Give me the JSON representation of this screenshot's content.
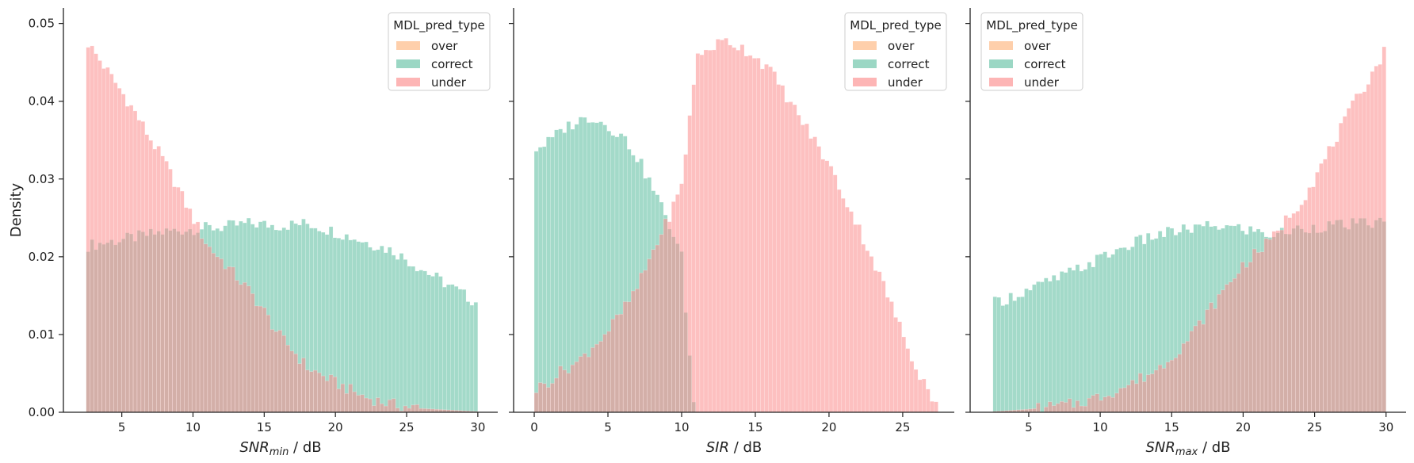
{
  "chart_data": [
    {
      "type": "histogram",
      "xlabel_base": "SNR",
      "xlabel_sub": "min",
      "xlabel_unit": " / dB",
      "ylabel": "Density",
      "xlim": [
        0.9,
        31.4
      ],
      "ylim": [
        0,
        0.052
      ],
      "xticks": [
        5,
        10,
        15,
        20,
        25,
        30
      ],
      "yticks": [
        0.0,
        0.01,
        0.02,
        0.03,
        0.04,
        0.05
      ],
      "ytick_labels": [
        "0.00",
        "0.01",
        "0.02",
        "0.03",
        "0.04",
        "0.05"
      ],
      "bin_range": [
        2.5,
        30
      ],
      "bins": 100,
      "legend_title": "MDL_pred_type",
      "legend_placement": "top-right",
      "legend_entries": [
        "over",
        "correct",
        "under"
      ],
      "series": [
        {
          "name": "correct",
          "color": "#66c2a5",
          "opacity": 0.6,
          "profile": [
            [
              2.5,
              0.0214
            ],
            [
              5,
              0.0222
            ],
            [
              8,
              0.0232
            ],
            [
              10,
              0.0236
            ],
            [
              12,
              0.0238
            ],
            [
              14,
              0.0243
            ],
            [
              16,
              0.024
            ],
            [
              18,
              0.0243
            ],
            [
              20,
              0.0232
            ],
            [
              22,
              0.022
            ],
            [
              24,
              0.0208
            ],
            [
              26,
              0.0185
            ],
            [
              28,
              0.0163
            ],
            [
              30,
              0.014
            ]
          ]
        },
        {
          "name": "under",
          "color": "#fc8d8d",
          "opacity": 0.55,
          "profile": [
            [
              2.5,
              0.0478
            ],
            [
              3.5,
              0.0452
            ],
            [
              5,
              0.0412
            ],
            [
              6,
              0.0384
            ],
            [
              7,
              0.0352
            ],
            [
              8,
              0.0322
            ],
            [
              9,
              0.0286
            ],
            [
              10,
              0.025
            ],
            [
              11,
              0.0215
            ],
            [
              12,
              0.0196
            ],
            [
              14,
              0.0155
            ],
            [
              15,
              0.013
            ],
            [
              16,
              0.01
            ],
            [
              17,
              0.008
            ],
            [
              18,
              0.0058
            ],
            [
              20,
              0.0038
            ],
            [
              22,
              0.002
            ],
            [
              24,
              0.001
            ],
            [
              26,
              0.0005
            ],
            [
              28,
              0.0003
            ],
            [
              30,
              0.0001
            ]
          ]
        }
      ]
    },
    {
      "type": "histogram",
      "xlabel_base": "SIR",
      "xlabel_sub": "",
      "xlabel_unit": " / dB",
      "ylabel": "",
      "xlim": [
        -1.4,
        28.5
      ],
      "ylim": [
        0,
        0.052
      ],
      "xticks": [
        0,
        5,
        10,
        15,
        20,
        25
      ],
      "yticks": [
        0.0,
        0.01,
        0.02,
        0.03,
        0.04,
        0.05
      ],
      "ytick_labels": [],
      "bin_range": [
        0,
        27.4
      ],
      "bins": 100,
      "legend_title": "MDL_pred_type",
      "legend_placement": "top-right",
      "legend_entries": [
        "over",
        "correct",
        "under"
      ],
      "series": [
        {
          "name": "correct",
          "color": "#66c2a5",
          "opacity": 0.6,
          "profile": [
            [
              0,
              0.0338
            ],
            [
              1,
              0.0348
            ],
            [
              2,
              0.0365
            ],
            [
              3,
              0.0375
            ],
            [
              4,
              0.038
            ],
            [
              5,
              0.0368
            ],
            [
              6,
              0.0355
            ],
            [
              7,
              0.0328
            ],
            [
              8,
              0.029
            ],
            [
              9,
              0.025
            ],
            [
              10,
              0.02
            ],
            [
              10.5,
              0.008
            ],
            [
              10.9,
              0.0
            ],
            [
              27.4,
              0.0
            ]
          ]
        },
        {
          "name": "under",
          "color": "#fc8d8d",
          "opacity": 0.55,
          "profile": [
            [
              0,
              0.0028
            ],
            [
              1,
              0.004
            ],
            [
              2,
              0.0055
            ],
            [
              3,
              0.0065
            ],
            [
              4,
              0.0085
            ],
            [
              5,
              0.0105
            ],
            [
              6,
              0.013
            ],
            [
              7,
              0.016
            ],
            [
              8,
              0.0205
            ],
            [
              9,
              0.0245
            ],
            [
              10,
              0.029
            ],
            [
              11,
              0.0455
            ],
            [
              12,
              0.047
            ],
            [
              13,
              0.0478
            ],
            [
              14,
              0.047
            ],
            [
              15,
              0.0458
            ],
            [
              16,
              0.044
            ],
            [
              17,
              0.041
            ],
            [
              18,
              0.038
            ],
            [
              19,
              0.035
            ],
            [
              20,
              0.0318
            ],
            [
              21,
              0.0278
            ],
            [
              22,
              0.0238
            ],
            [
              23,
              0.0195
            ],
            [
              24,
              0.015
            ],
            [
              25,
              0.01
            ],
            [
              26,
              0.0055
            ],
            [
              27,
              0.002
            ],
            [
              27.4,
              0.0008
            ]
          ]
        }
      ]
    },
    {
      "type": "histogram",
      "xlabel_base": "SNR",
      "xlabel_sub": "max",
      "xlabel_unit": " / dB",
      "ylabel": "",
      "xlim": [
        0.9,
        31.4
      ],
      "ylim": [
        0,
        0.052
      ],
      "xticks": [
        5,
        10,
        15,
        20,
        25,
        30
      ],
      "yticks": [
        0.0,
        0.01,
        0.02,
        0.03,
        0.04,
        0.05
      ],
      "ytick_labels": [],
      "bin_range": [
        2.5,
        30
      ],
      "bins": 100,
      "legend_title": "MDL_pred_type",
      "legend_placement": "top-left",
      "legend_entries": [
        "over",
        "correct",
        "under"
      ],
      "series": [
        {
          "name": "correct",
          "color": "#66c2a5",
          "opacity": 0.6,
          "profile": [
            [
              2.5,
              0.014
            ],
            [
              4,
              0.015
            ],
            [
              6,
              0.0165
            ],
            [
              8,
              0.018
            ],
            [
              10,
              0.0198
            ],
            [
              12,
              0.0215
            ],
            [
              14,
              0.0228
            ],
            [
              16,
              0.0235
            ],
            [
              18,
              0.024
            ],
            [
              20,
              0.0236
            ],
            [
              22,
              0.0228
            ],
            [
              24,
              0.0236
            ],
            [
              26,
              0.024
            ],
            [
              28,
              0.0242
            ],
            [
              30,
              0.0245
            ]
          ]
        },
        {
          "name": "under",
          "color": "#fc8d8d",
          "opacity": 0.55,
          "profile": [
            [
              2.5,
              0.0001
            ],
            [
              5,
              0.0004
            ],
            [
              8,
              0.001
            ],
            [
              10,
              0.002
            ],
            [
              12,
              0.0035
            ],
            [
              14,
              0.0055
            ],
            [
              16,
              0.009
            ],
            [
              18,
              0.014
            ],
            [
              20,
              0.019
            ],
            [
              22,
              0.0222
            ],
            [
              23,
              0.0248
            ],
            [
              24,
              0.027
            ],
            [
              25,
              0.03
            ],
            [
              26,
              0.0335
            ],
            [
              27,
              0.037
            ],
            [
              28,
              0.0405
            ],
            [
              29,
              0.0435
            ],
            [
              30,
              0.0468
            ]
          ]
        }
      ]
    }
  ],
  "legend_colors": {
    "over": "#fdb57e",
    "correct": "#66c2a5",
    "under": "#fc8d8d"
  }
}
